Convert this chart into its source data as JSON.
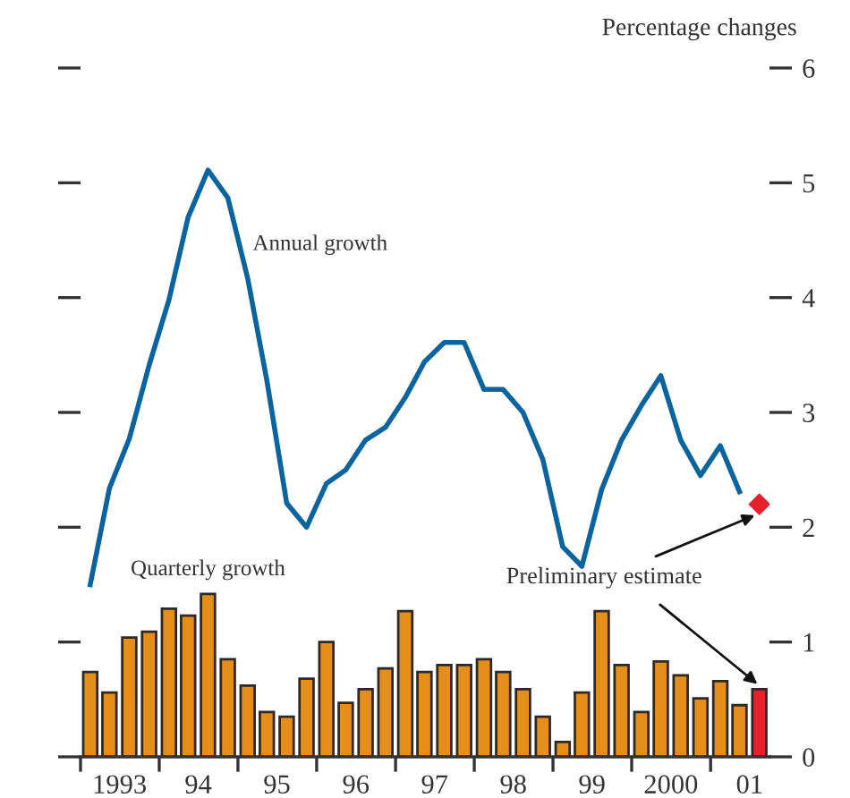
{
  "chart_data": {
    "type": "bar",
    "ylabel": "Percentage changes",
    "xlim": [
      "1993-01-01",
      "2001-10-01"
    ],
    "xticks": [
      {
        "value": "1993-01-01",
        "label": null
      },
      {
        "value": "1993-07-01",
        "label": "1993"
      },
      {
        "value": "1994-01-01",
        "label": null
      },
      {
        "value": "1994-07-01",
        "label": "94"
      },
      {
        "value": "1995-01-01",
        "label": null
      },
      {
        "value": "1995-07-01",
        "label": "95"
      },
      {
        "value": "1996-01-01",
        "label": null
      },
      {
        "value": "1996-07-01",
        "label": "96"
      },
      {
        "value": "1997-01-01",
        "label": null
      },
      {
        "value": "1997-07-01",
        "label": "97"
      },
      {
        "value": "1998-01-01",
        "label": null
      },
      {
        "value": "1998-07-01",
        "label": "98"
      },
      {
        "value": "1999-01-01",
        "label": null
      },
      {
        "value": "1999-07-01",
        "label": "99"
      },
      {
        "value": "2000-01-01",
        "label": null
      },
      {
        "value": "2000-07-01",
        "label": "2000"
      },
      {
        "value": "2001-01-01",
        "label": null
      },
      {
        "value": "2001-07-01",
        "label": "01"
      }
    ],
    "ylim": [
      0,
      6
    ],
    "yticks": [
      0,
      1,
      2,
      3,
      4,
      5,
      6
    ],
    "grid": false,
    "legend": false,
    "series": [
      {
        "name": "Quarterly growth",
        "x": [
          "1993-02-15",
          "1993-05-15",
          "1993-08-15",
          "1993-11-15",
          "1994-02-15",
          "1994-05-15",
          "1994-08-15",
          "1994-11-15",
          "1995-02-15",
          "1995-05-15",
          "1995-08-15",
          "1995-11-15",
          "1996-02-15",
          "1996-05-15",
          "1996-08-15",
          "1996-11-15",
          "1997-02-15",
          "1997-05-15",
          "1997-08-15",
          "1997-11-15",
          "1998-02-15",
          "1998-05-15",
          "1998-08-15",
          "1998-11-15",
          "1999-02-15",
          "1999-05-15",
          "1999-08-15",
          "1999-11-15",
          "2000-02-15",
          "2000-05-15",
          "2000-08-15",
          "2000-11-15",
          "2001-02-15",
          "2001-05-15",
          "2001-08-15"
        ],
        "colors": [
          "#e58e1a",
          "#e58e1a",
          "#e58e1a",
          "#e58e1a",
          "#e58e1a",
          "#e58e1a",
          "#e58e1a",
          "#e58e1a",
          "#e58e1a",
          "#e58e1a",
          "#e58e1a",
          "#e58e1a",
          "#e58e1a",
          "#e58e1a",
          "#e58e1a",
          "#e58e1a",
          "#e58e1a",
          "#e58e1a",
          "#e58e1a",
          "#e58e1a",
          "#e58e1a",
          "#e58e1a",
          "#e58e1a",
          "#e58e1a",
          "#e58e1a",
          "#e58e1a",
          "#e58e1a",
          "#e58e1a",
          "#e58e1a",
          "#e58e1a",
          "#e58e1a",
          "#e58e1a",
          "#e58e1a",
          "#e58e1a",
          "#e8202a"
        ],
        "values": [
          0.74,
          0.56,
          1.04,
          1.09,
          1.29,
          1.23,
          1.42,
          0.85,
          0.62,
          0.39,
          0.35,
          0.68,
          1.0,
          0.47,
          0.59,
          0.77,
          1.27,
          0.74,
          0.8,
          0.8,
          0.85,
          0.74,
          0.59,
          0.35,
          0.13,
          0.56,
          1.27,
          0.8,
          0.39,
          0.83,
          0.71,
          0.51,
          0.66,
          0.45,
          0.59
        ]
      },
      {
        "name": "Annual growth",
        "type": "line",
        "color": "#0a64a0",
        "marker": "none",
        "line_style": "solid",
        "x": [
          "1993-02-15",
          "1993-05-15",
          "1993-08-15",
          "1993-11-15",
          "1994-02-15",
          "1994-05-15",
          "1994-08-15",
          "1994-11-15",
          "1995-02-15",
          "1995-05-15",
          "1995-08-15",
          "1995-11-15",
          "1996-02-15",
          "1996-05-15",
          "1996-08-15",
          "1996-11-15",
          "1997-02-15",
          "1997-05-15",
          "1997-08-15",
          "1997-11-15",
          "1998-02-15",
          "1998-05-15",
          "1998-08-15",
          "1998-11-15",
          "1999-02-15",
          "1999-05-15",
          "1999-08-15",
          "1999-11-15",
          "2000-02-15",
          "2000-05-15",
          "2000-08-15",
          "2000-11-15",
          "2001-02-15",
          "2001-05-15"
        ],
        "values": [
          1.5,
          2.34,
          2.77,
          3.41,
          3.98,
          4.7,
          5.11,
          4.87,
          4.17,
          3.28,
          2.21,
          2.0,
          2.38,
          2.5,
          2.76,
          2.87,
          3.13,
          3.44,
          3.61,
          3.61,
          3.2,
          3.2,
          3.0,
          2.59,
          1.83,
          1.66,
          2.33,
          2.76,
          3.06,
          3.32,
          2.76,
          2.45,
          2.71,
          2.31
        ]
      },
      {
        "type": "scatter",
        "color": "#e8202a",
        "marker": "diamond",
        "x": [
          "2001-08-15"
        ],
        "values": [
          2.2
        ]
      }
    ],
    "annotations": [
      {
        "text": "Preliminary estimate",
        "x": "2001-08-15",
        "y": 2.2
      }
    ]
  }
}
